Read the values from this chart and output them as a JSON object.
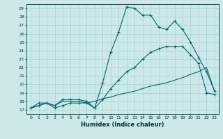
{
  "xlabel": "Humidex (Indice chaleur)",
  "bg_color": "#cce8e8",
  "line_color": "#006868",
  "xlim": [
    -0.5,
    23.5
  ],
  "ylim": [
    16.5,
    29.5
  ],
  "xticks": [
    0,
    1,
    2,
    3,
    4,
    5,
    6,
    7,
    8,
    9,
    10,
    11,
    12,
    13,
    14,
    15,
    16,
    17,
    18,
    19,
    20,
    21,
    22,
    23
  ],
  "yticks": [
    17,
    18,
    19,
    20,
    21,
    22,
    23,
    24,
    25,
    26,
    27,
    28,
    29
  ],
  "series1_x": [
    0,
    1,
    2,
    3,
    4,
    5,
    6,
    7,
    8,
    9,
    10,
    11,
    12,
    13,
    14,
    15,
    16,
    17,
    18,
    19,
    20,
    21,
    22,
    23
  ],
  "series1_y": [
    17.2,
    17.8,
    17.8,
    17.2,
    17.5,
    17.8,
    17.8,
    17.8,
    17.2,
    20.2,
    23.8,
    26.2,
    29.2,
    29.0,
    28.2,
    28.2,
    26.8,
    26.5,
    27.5,
    26.5,
    25.0,
    23.2,
    21.5,
    19.2
  ],
  "series2_x": [
    0,
    1,
    2,
    3,
    4,
    5,
    6,
    7,
    8,
    9,
    10,
    11,
    12,
    13,
    14,
    15,
    16,
    17,
    18,
    19,
    20,
    21,
    22,
    23
  ],
  "series2_y": [
    17.2,
    17.5,
    17.8,
    17.5,
    18.0,
    18.0,
    18.0,
    17.8,
    18.0,
    18.3,
    18.5,
    18.8,
    19.0,
    19.2,
    19.5,
    19.8,
    20.0,
    20.2,
    20.5,
    20.8,
    21.2,
    21.5,
    22.0,
    19.2
  ],
  "series3_x": [
    0,
    1,
    2,
    3,
    4,
    5,
    6,
    7,
    8,
    9,
    10,
    11,
    12,
    13,
    14,
    15,
    16,
    17,
    18,
    19,
    20,
    21,
    22,
    23
  ],
  "series3_y": [
    17.2,
    17.5,
    17.8,
    17.5,
    18.2,
    18.2,
    18.2,
    18.0,
    17.2,
    18.2,
    19.5,
    20.5,
    21.5,
    22.0,
    23.0,
    23.8,
    24.2,
    24.5,
    24.5,
    24.5,
    23.5,
    22.5,
    19.0,
    18.8
  ]
}
